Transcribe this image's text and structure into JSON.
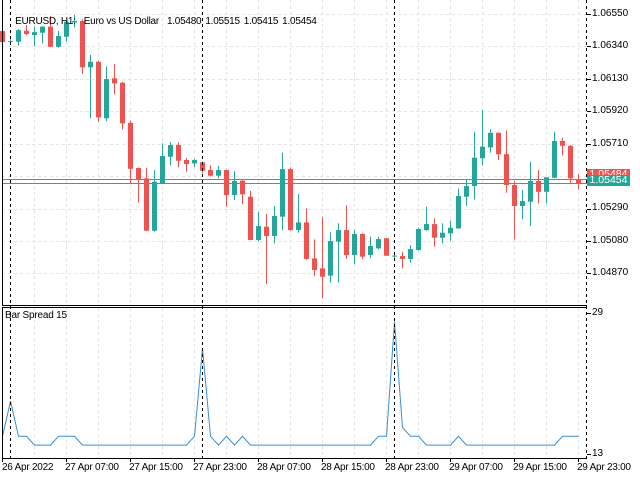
{
  "header": {
    "symbol_timeframe": "EURUSD, H1:",
    "description": "Euro vs US Dollar",
    "ohlc": [
      "1.05480",
      "1.05515",
      "1.05415",
      "1.05454"
    ]
  },
  "price_axis": {
    "labels": [
      "1.06550",
      "1.06340",
      "1.06130",
      "1.05920",
      "1.05710",
      "1.05290",
      "1.05080",
      "1.04870"
    ],
    "label_prices": [
      1.0655,
      1.0634,
      1.0613,
      1.0592,
      1.0571,
      1.0529,
      1.0508,
      1.0487
    ],
    "ask_label": "1.05484",
    "bid_label": "1.05454",
    "ask_price": 1.05484,
    "bid_price": 1.05454
  },
  "indicator": {
    "title": "Bar Spread 15",
    "axis_labels": [
      "29",
      "13"
    ],
    "axis_values": [
      29,
      13
    ]
  },
  "time_axis": {
    "labels": [
      {
        "text": "26 Apr 2022",
        "bar": 0
      },
      {
        "text": "27 Apr 07:00",
        "bar": 8
      },
      {
        "text": "27 Apr 15:00",
        "bar": 16
      },
      {
        "text": "27 Apr 23:00",
        "bar": 24
      },
      {
        "text": "28 Apr 07:00",
        "bar": 32
      },
      {
        "text": "28 Apr 15:00",
        "bar": 40
      },
      {
        "text": "28 Apr 23:00",
        "bar": 48
      },
      {
        "text": "29 Apr 07:00",
        "bar": 56
      },
      {
        "text": "29 Apr 15:00",
        "bar": 64
      },
      {
        "text": "29 Apr 23:00",
        "bar": 72
      }
    ],
    "period_separator_bars": [
      1,
      25,
      49,
      73
    ]
  },
  "colors": {
    "bull": "#26a69a",
    "bear": "#ef5350",
    "grid": "#e4e4e4",
    "spread_line": "#3b8ed0",
    "ask_line": "#ef5350",
    "bid_line": "#26a69a",
    "frame": "#000000"
  },
  "chart_data": [
    {
      "type": "candlestick",
      "title": "EURUSD, H1: Euro vs US Dollar",
      "xlabel": "",
      "ylabel": "",
      "ylim": [
        1.04666,
        1.06641
      ],
      "grid": true,
      "ygrid_start": 1.0655,
      "ygrid_step": 0.0021,
      "x": [
        "26 Apr 23:00",
        "27 Apr 00:00",
        "27 Apr 01:00",
        "27 Apr 02:00",
        "27 Apr 03:00",
        "27 Apr 04:00",
        "27 Apr 05:00",
        "27 Apr 06:00",
        "27 Apr 07:00",
        "27 Apr 08:00",
        "27 Apr 09:00",
        "27 Apr 10:00",
        "27 Apr 11:00",
        "27 Apr 12:00",
        "27 Apr 13:00",
        "27 Apr 14:00",
        "27 Apr 15:00",
        "27 Apr 16:00",
        "27 Apr 17:00",
        "27 Apr 18:00",
        "27 Apr 19:00",
        "27 Apr 20:00",
        "27 Apr 21:00",
        "27 Apr 22:00",
        "27 Apr 23:00",
        "28 Apr 00:00",
        "28 Apr 01:00",
        "28 Apr 02:00",
        "28 Apr 03:00",
        "28 Apr 04:00",
        "28 Apr 05:00",
        "28 Apr 06:00",
        "28 Apr 07:00",
        "28 Apr 08:00",
        "28 Apr 09:00",
        "28 Apr 10:00",
        "28 Apr 11:00",
        "28 Apr 12:00",
        "28 Apr 13:00",
        "28 Apr 14:00",
        "28 Apr 15:00",
        "28 Apr 16:00",
        "28 Apr 17:00",
        "28 Apr 18:00",
        "28 Apr 19:00",
        "28 Apr 20:00",
        "28 Apr 21:00",
        "28 Apr 22:00",
        "28 Apr 23:00",
        "29 Apr 00:00",
        "29 Apr 01:00",
        "29 Apr 02:00",
        "29 Apr 03:00",
        "29 Apr 04:00",
        "29 Apr 05:00",
        "29 Apr 06:00",
        "29 Apr 07:00",
        "29 Apr 08:00",
        "29 Apr 09:00",
        "29 Apr 10:00",
        "29 Apr 11:00",
        "29 Apr 12:00",
        "29 Apr 13:00",
        "29 Apr 14:00",
        "29 Apr 15:00",
        "29 Apr 16:00",
        "29 Apr 17:00",
        "29 Apr 18:00",
        "29 Apr 19:00",
        "29 Apr 20:00",
        "29 Apr 21:00",
        "29 Apr 22:00",
        "29 Apr 23:00"
      ],
      "open": [
        1.0644,
        1.06369,
        1.06371,
        1.06442,
        1.06414,
        1.06429,
        1.06468,
        1.06338,
        1.06403,
        1.06495,
        1.06505,
        1.06205,
        1.06241,
        1.05875,
        1.06134,
        1.06105,
        1.05846,
        1.05553,
        1.05486,
        1.05147,
        1.05454,
        1.05626,
        1.05702,
        1.05605,
        1.05583,
        1.0559,
        1.0554,
        1.05503,
        1.0554,
        1.05378,
        1.05471,
        1.05367,
        1.05087,
        1.05173,
        1.05113,
        1.05238,
        1.05546,
        1.05151,
        1.05201,
        1.04968,
        1.04903,
        1.04856,
        1.05076,
        1.05151,
        1.0499,
        1.05126,
        1.0499,
        1.05033,
        1.05098,
        1.04983,
        1.04983,
        1.04964,
        1.05022,
        1.05151,
        1.0519,
        1.05102,
        1.0513,
        1.05162,
        1.05367,
        1.05436,
        1.05616,
        1.05687,
        1.05781,
        1.05643,
        1.05443,
        1.05307,
        1.05335,
        1.05469,
        1.05399,
        1.0549,
        1.05728,
        1.05697,
        1.0548
      ],
      "high": [
        1.06446,
        1.06388,
        1.06453,
        1.06479,
        1.06468,
        1.06472,
        1.06537,
        1.0644,
        1.06511,
        1.06544,
        1.06516,
        1.06285,
        1.06248,
        1.06209,
        1.06226,
        1.06112,
        1.05859,
        1.05557,
        1.05553,
        1.0554,
        1.05713,
        1.05723,
        1.05719,
        1.05618,
        1.05611,
        1.05592,
        1.05572,
        1.05566,
        1.05543,
        1.05533,
        1.05475,
        1.05404,
        1.0527,
        1.05255,
        1.05307,
        1.05652,
        1.05557,
        1.05385,
        1.05292,
        1.05091,
        1.05234,
        1.05137,
        1.05195,
        1.05313,
        1.05151,
        1.0513,
        1.05108,
        1.05108,
        1.051,
        1.05011,
        1.05011,
        1.05054,
        1.05166,
        1.05302,
        1.05227,
        1.05195,
        1.05212,
        1.05421,
        1.05482,
        1.05788,
        1.05928,
        1.05805,
        1.05783,
        1.05794,
        1.05469,
        1.0541,
        1.05594,
        1.0554,
        1.05495,
        1.05788,
        1.05749,
        1.05702,
        1.05515
      ],
      "low": [
        1.06362,
        1.06356,
        1.06345,
        1.06414,
        1.06343,
        1.0636,
        1.06336,
        1.06332,
        1.06371,
        1.06464,
        1.06162,
        1.05875,
        1.05853,
        1.05857,
        1.0603,
        1.05803,
        1.05449,
        1.05328,
        1.05145,
        1.0514,
        1.05452,
        1.05572,
        1.05557,
        1.05529,
        1.05557,
        1.05519,
        1.05497,
        1.05486,
        1.05302,
        1.05346,
        1.0532,
        1.05085,
        1.0508,
        1.04802,
        1.05065,
        1.05151,
        1.05148,
        1.05134,
        1.04957,
        1.04854,
        1.04709,
        1.0481,
        1.0481,
        1.04964,
        1.04931,
        1.04962,
        1.04968,
        1.05026,
        1.04983,
        1.04957,
        1.04903,
        1.0494,
        1.05017,
        1.05147,
        1.05043,
        1.05065,
        1.05082,
        1.0516,
        1.05307,
        1.0535,
        1.05572,
        1.05652,
        1.05605,
        1.05393,
        1.05091,
        1.05221,
        1.05177,
        1.05324,
        1.05324,
        1.05488,
        1.05633,
        1.05452,
        1.05415
      ],
      "close": [
        1.06369,
        1.06375,
        1.06446,
        1.06421,
        1.06433,
        1.06468,
        1.06338,
        1.06408,
        1.065,
        1.06505,
        1.06205,
        1.06241,
        1.05881,
        1.06129,
        1.06101,
        1.05842,
        1.05548,
        1.0548,
        1.05147,
        1.05464,
        1.05631,
        1.05702,
        1.056,
        1.05579,
        1.05605,
        1.05535,
        1.05503,
        1.0554,
        1.05378,
        1.05469,
        1.05383,
        1.05087,
        1.05177,
        1.05113,
        1.05242,
        1.05546,
        1.05151,
        1.05201,
        1.04964,
        1.04892,
        1.04849,
        1.0508,
        1.05151,
        1.0499,
        1.05126,
        1.04979,
        1.05048,
        1.05093,
        1.04985,
        1.04986,
        1.04964,
        1.05028,
        1.05158,
        1.0519,
        1.05102,
        1.05134,
        1.05166,
        1.05372,
        1.05436,
        1.0562,
        1.05691,
        1.05781,
        1.05642,
        1.05443,
        1.05307,
        1.05339,
        1.05469,
        1.05399,
        1.05493,
        1.05728,
        1.05697,
        1.05486,
        1.05454
      ]
    },
    {
      "type": "line",
      "title": "Bar Spread 15",
      "xlabel": "",
      "ylabel": "",
      "ylim": [
        12.54,
        29.57
      ],
      "grid": true,
      "series": [
        {
          "name": "Bar Spread",
          "values": [
            15,
            19,
            15,
            15,
            14,
            14,
            14,
            15,
            15,
            15,
            14,
            14,
            14,
            14,
            14,
            14,
            14,
            14,
            14,
            14,
            14,
            14,
            14,
            14,
            15,
            25,
            15,
            14,
            15,
            14,
            15,
            14,
            14,
            14,
            14,
            14,
            14,
            14,
            14,
            14,
            14,
            14,
            14,
            14,
            14,
            14,
            14,
            15,
            15,
            28,
            16,
            15,
            15,
            14,
            14,
            14,
            14,
            15,
            14,
            14,
            14,
            14,
            14,
            14,
            14,
            14,
            14,
            14,
            14,
            14,
            15,
            15,
            15
          ]
        }
      ]
    }
  ]
}
